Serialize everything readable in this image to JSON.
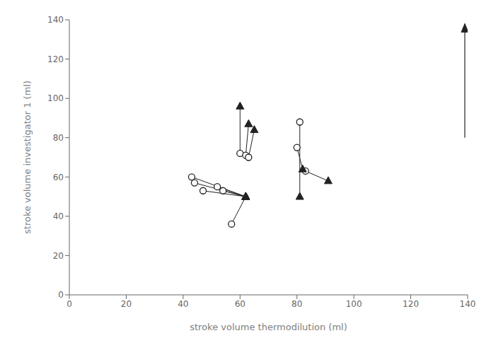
{
  "chart_data": {
    "type": "scatter",
    "xlabel": "stroke volume thermodilution (ml)",
    "ylabel": "stroke volume investigator 1 (ml)",
    "xlim": [
      0,
      140
    ],
    "ylim": [
      0,
      140
    ],
    "xticks": [
      0,
      20,
      40,
      60,
      80,
      100,
      120,
      140
    ],
    "yticks": [
      0,
      20,
      40,
      60,
      80,
      100,
      120,
      140
    ],
    "grid": false,
    "color": "#222222",
    "pairs": [
      {
        "circle": [
          43,
          60
        ],
        "triangle": [
          62,
          50
        ]
      },
      {
        "circle": [
          44,
          57
        ],
        "triangle": [
          62,
          50
        ]
      },
      {
        "circle": [
          47,
          53
        ],
        "triangle": [
          62,
          50
        ]
      },
      {
        "circle": [
          52,
          55
        ],
        "triangle": [
          62,
          50
        ]
      },
      {
        "circle": [
          54,
          53
        ],
        "triangle": [
          62,
          50
        ]
      },
      {
        "circle": [
          57,
          36
        ],
        "triangle": [
          62,
          50
        ]
      },
      {
        "circle": [
          60,
          72
        ],
        "triangle": [
          60,
          96
        ]
      },
      {
        "circle": [
          62,
          71
        ],
        "triangle": [
          63,
          87
        ]
      },
      {
        "circle": [
          63,
          70
        ],
        "triangle": [
          65,
          84
        ]
      },
      {
        "circle": [
          80,
          75
        ],
        "triangle": [
          82,
          64
        ]
      },
      {
        "circle": [
          81,
          88
        ],
        "triangle": [
          81,
          50
        ]
      },
      {
        "circle": [
          83,
          63
        ],
        "triangle": [
          91,
          58
        ]
      }
    ],
    "arrow": {
      "x": 139,
      "y_start": 80,
      "y_end": 138
    }
  }
}
